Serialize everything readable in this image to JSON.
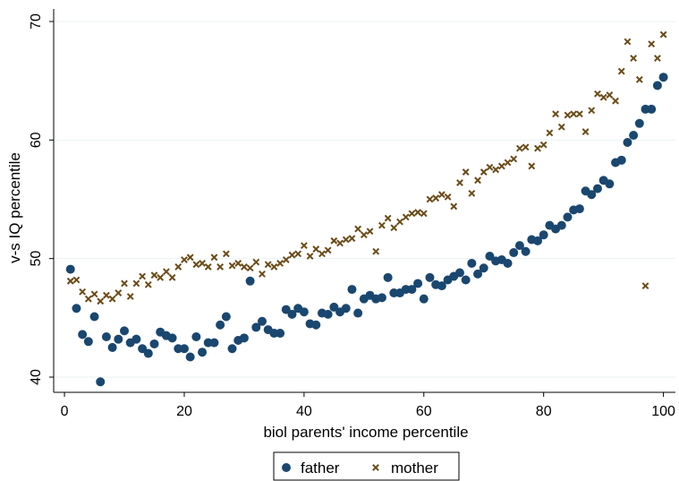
{
  "chart_data": {
    "type": "scatter",
    "xlabel": "biol parents' income percentile",
    "ylabel": "v-s IQ percentile",
    "xlim": [
      0,
      100
    ],
    "ylim": [
      40,
      70
    ],
    "xticks": [
      0,
      20,
      40,
      60,
      80,
      100
    ],
    "yticks": [
      40,
      50,
      60,
      70
    ],
    "grid": "horizontal",
    "legend_position": "bottom",
    "series": [
      {
        "name": "father",
        "marker": "circle",
        "color": "#1a476f",
        "x": [
          1,
          2,
          3,
          4,
          5,
          6,
          7,
          8,
          9,
          10,
          11,
          12,
          13,
          14,
          15,
          16,
          17,
          18,
          19,
          20,
          21,
          22,
          23,
          24,
          25,
          26,
          27,
          28,
          29,
          30,
          31,
          32,
          33,
          34,
          35,
          36,
          37,
          38,
          39,
          40,
          41,
          42,
          43,
          44,
          45,
          46,
          47,
          48,
          49,
          50,
          51,
          52,
          53,
          54,
          55,
          56,
          57,
          58,
          59,
          60,
          61,
          62,
          63,
          64,
          65,
          66,
          67,
          68,
          69,
          70,
          71,
          72,
          73,
          74,
          75,
          76,
          77,
          78,
          79,
          80,
          81,
          82,
          83,
          84,
          85,
          86,
          87,
          88,
          89,
          90,
          91,
          92,
          93,
          94,
          95,
          96,
          97,
          98,
          99,
          100
        ],
        "y": [
          49.1,
          45.8,
          43.6,
          43.0,
          45.1,
          39.6,
          43.4,
          42.5,
          43.2,
          43.9,
          42.9,
          43.2,
          42.4,
          42.0,
          42.8,
          43.8,
          43.5,
          43.3,
          42.4,
          42.4,
          41.7,
          43.4,
          42.1,
          42.9,
          42.9,
          44.4,
          45.1,
          42.4,
          43.1,
          43.3,
          48.1,
          44.2,
          44.7,
          44.0,
          43.7,
          43.7,
          45.7,
          45.3,
          45.8,
          45.5,
          44.5,
          44.4,
          45.4,
          45.3,
          45.9,
          45.5,
          45.8,
          47.4,
          45.4,
          46.6,
          46.9,
          46.6,
          46.7,
          48.4,
          47.1,
          47.1,
          47.4,
          47.4,
          47.9,
          46.6,
          48.4,
          47.8,
          47.7,
          48.2,
          48.5,
          48.8,
          48.2,
          49.6,
          48.7,
          49.2,
          50.2,
          49.8,
          49.9,
          49.6,
          50.5,
          51.1,
          50.6,
          51.6,
          51.5,
          52.0,
          52.8,
          52.5,
          52.8,
          53.5,
          54.1,
          54.2,
          55.7,
          55.4,
          55.9,
          56.6,
          56.3,
          58.1,
          58.3,
          59.8,
          60.4,
          61.4,
          62.6,
          62.6,
          64.6,
          65.3
        ]
      },
      {
        "name": "mother",
        "marker": "x",
        "color": "#6b4b17",
        "x": [
          1,
          2,
          3,
          4,
          5,
          6,
          7,
          8,
          9,
          10,
          11,
          12,
          13,
          14,
          15,
          16,
          17,
          18,
          19,
          20,
          21,
          22,
          23,
          24,
          25,
          26,
          27,
          28,
          29,
          30,
          31,
          32,
          33,
          34,
          35,
          36,
          37,
          38,
          39,
          40,
          41,
          42,
          43,
          44,
          45,
          46,
          47,
          48,
          49,
          50,
          51,
          52,
          53,
          54,
          55,
          56,
          57,
          58,
          59,
          60,
          61,
          62,
          63,
          64,
          65,
          66,
          67,
          68,
          69,
          70,
          71,
          72,
          73,
          74,
          75,
          76,
          77,
          78,
          79,
          80,
          81,
          82,
          83,
          84,
          85,
          86,
          87,
          88,
          89,
          90,
          91,
          92,
          93,
          94,
          95,
          96,
          97,
          98,
          99,
          100
        ],
        "y": [
          48.1,
          48.2,
          47.2,
          46.6,
          47.0,
          46.4,
          46.9,
          46.6,
          47.1,
          47.9,
          46.8,
          47.9,
          48.5,
          47.8,
          48.6,
          48.4,
          48.9,
          48.4,
          49.3,
          49.9,
          50.1,
          49.5,
          49.6,
          49.3,
          50.1,
          49.3,
          50.4,
          49.4,
          49.6,
          49.3,
          49.2,
          49.7,
          48.7,
          49.5,
          49.3,
          49.6,
          49.9,
          50.3,
          50.4,
          51.1,
          50.2,
          50.8,
          50.4,
          50.7,
          51.5,
          51.3,
          51.6,
          51.7,
          52.5,
          52.0,
          52.3,
          50.6,
          52.8,
          53.4,
          52.6,
          53.1,
          53.5,
          53.8,
          53.9,
          53.8,
          55.0,
          55.1,
          55.4,
          55.2,
          54.4,
          56.4,
          57.3,
          55.5,
          56.6,
          57.3,
          57.7,
          57.5,
          57.8,
          58.1,
          58.4,
          59.3,
          59.4,
          57.8,
          59.3,
          59.6,
          60.6,
          62.2,
          61.1,
          62.1,
          62.2,
          62.2,
          60.7,
          62.5,
          63.9,
          63.6,
          63.8,
          63.3,
          65.8,
          68.3,
          66.9,
          65.1,
          47.7,
          68.1,
          66.9,
          68.9
        ]
      }
    ]
  }
}
